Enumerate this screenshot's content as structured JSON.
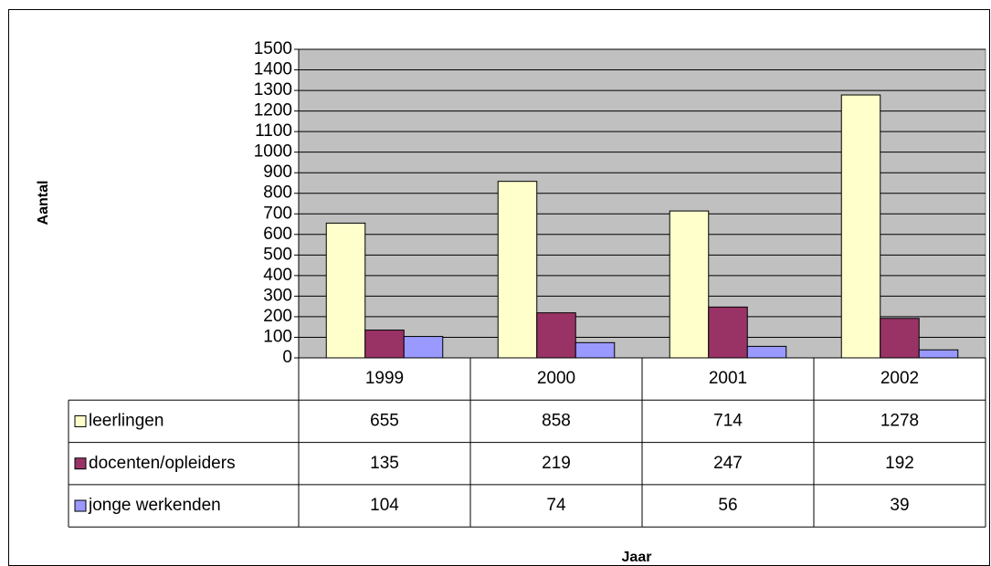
{
  "chart_data": {
    "type": "bar",
    "categories": [
      "1999",
      "2000",
      "2001",
      "2002"
    ],
    "series": [
      {
        "name": "leerlingen",
        "color": "#ffffcc",
        "values": [
          655,
          858,
          714,
          1278
        ]
      },
      {
        "name": "docenten/opleiders",
        "color": "#993366",
        "values": [
          135,
          219,
          247,
          192
        ]
      },
      {
        "name": "jonge werkenden",
        "color": "#9999ff",
        "values": [
          104,
          74,
          56,
          39
        ]
      }
    ],
    "ylim": [
      0,
      1500
    ],
    "yticks": [
      0,
      100,
      200,
      300,
      400,
      500,
      600,
      700,
      800,
      900,
      1000,
      1100,
      1200,
      1300,
      1400,
      1500
    ],
    "grid": true,
    "y_label": "Aantal",
    "x_label": "Jaar",
    "plot_background": "#c0c0c0"
  }
}
